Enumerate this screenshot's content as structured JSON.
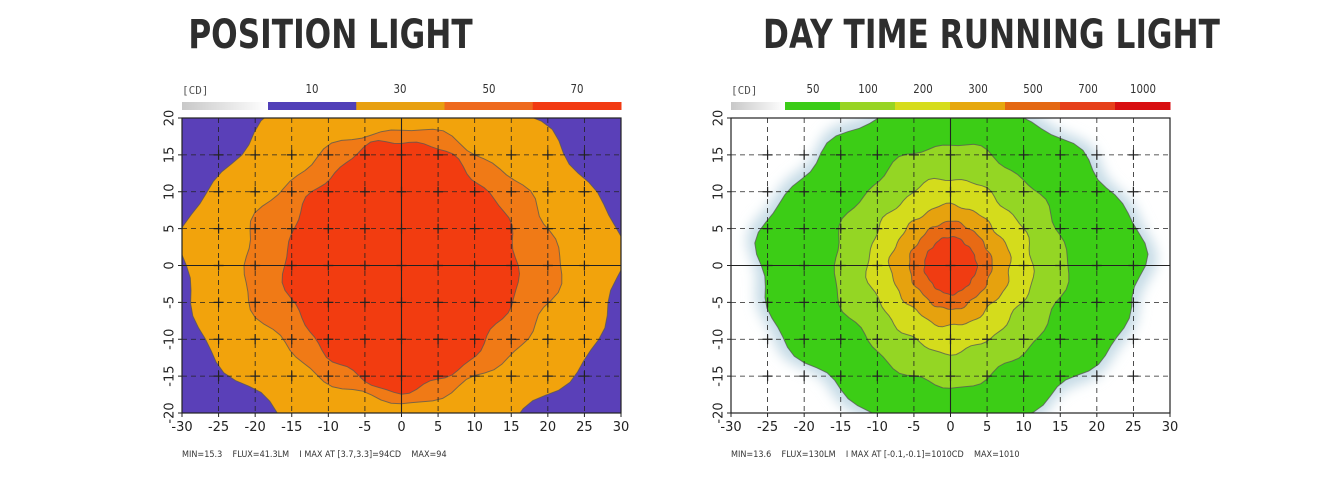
{
  "chart_data": [
    {
      "type": "heatmap",
      "title": "POSITION LIGHT",
      "unit_label": "[CD]",
      "legend": {
        "labels": [
          "10",
          "30",
          "50",
          "70"
        ],
        "colors": [
          "#5140b8",
          "#e8a010",
          "#ee6a1e",
          "#f23a12"
        ]
      },
      "xlim": [
        -30,
        30
      ],
      "ylim": [
        -20,
        20
      ],
      "x_ticks": [
        -30,
        -25,
        -20,
        -15,
        -10,
        -5,
        0,
        5,
        10,
        15,
        20,
        25,
        30
      ],
      "y_ticks": [
        -20,
        -15,
        -10,
        -5,
        0,
        5,
        10,
        15,
        20
      ],
      "background_color": "#5a40b8",
      "contours": [
        {
          "level": 10,
          "color": "#f2a30c",
          "x_radius": 29,
          "y_radius": 26
        },
        {
          "level": 30,
          "color": "#f07a16",
          "x_radius": 21,
          "y_radius": 18
        },
        {
          "level": 50,
          "color": "#f23c10",
          "x_radius": 15.5,
          "y_radius": 16.5
        }
      ],
      "stats": "MIN=15.3    FLUX=41.3LM    I MAX AT [3.7,3.3]=94CD    MAX=94"
    },
    {
      "type": "heatmap",
      "title": "DAY TIME RUNNING LIGHT",
      "unit_label": "[CD]",
      "legend": {
        "labels": [
          "50",
          "100",
          "200",
          "300",
          "500",
          "700",
          "1000"
        ],
        "colors": [
          "#3bcc17",
          "#98d424",
          "#d6dc1c",
          "#e6a80e",
          "#e46812",
          "#e6401a",
          "#d80e10"
        ]
      },
      "xlim": [
        -30,
        30
      ],
      "ylim": [
        -20,
        20
      ],
      "x_ticks": [
        -30,
        -25,
        -20,
        -15,
        -10,
        -5,
        0,
        5,
        10,
        15,
        20,
        25,
        30
      ],
      "y_ticks": [
        -20,
        -15,
        -10,
        -5,
        0,
        5,
        10,
        15,
        20
      ],
      "background_color": "#ffffff",
      "contours": [
        {
          "level": 50,
          "color": "#3ccd16",
          "x_radius": 25.5,
          "y_radius": 22
        },
        {
          "level": 100,
          "color": "#94d624",
          "x_radius": 15.5,
          "y_radius": 16
        },
        {
          "level": 200,
          "color": "#d4dc1c",
          "x_radius": 11,
          "y_radius": 11.5
        },
        {
          "level": 300,
          "color": "#e6a20e",
          "x_radius": 8,
          "y_radius": 8
        },
        {
          "level": 500,
          "color": "#e86a14",
          "x_radius": 5.5,
          "y_radius": 5.8
        },
        {
          "level": 700,
          "color": "#f03c12",
          "x_radius": 3.5,
          "y_radius": 3.8
        }
      ],
      "stats": "MIN=13.6    FLUX=130LM    I MAX AT [-0.1,-0.1]=1010CD    MAX=1010"
    }
  ]
}
